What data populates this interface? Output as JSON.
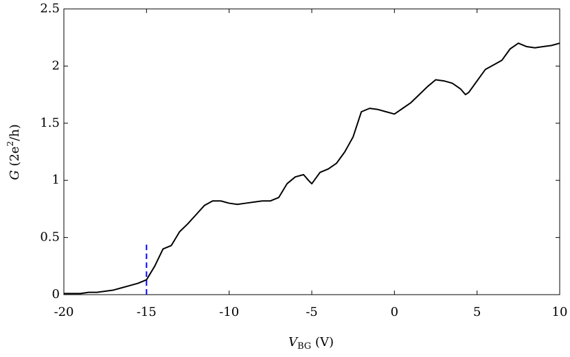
{
  "chart_data": {
    "type": "line",
    "xlabel": [
      "V",
      "BG",
      " (V)"
    ],
    "ylabel": [
      "G",
      " (2e",
      "2",
      "/h)"
    ],
    "x": [
      -20,
      -19.5,
      -19,
      -18.5,
      -18,
      -17.5,
      -17,
      -16.5,
      -16,
      -15.5,
      -15,
      -14.5,
      -14,
      -13.5,
      -13,
      -12.5,
      -12,
      -11.5,
      -11,
      -10.5,
      -10,
      -9.5,
      -9,
      -8.5,
      -8,
      -7.5,
      -7,
      -6.5,
      -6,
      -5.5,
      -5.2,
      -5,
      -4.5,
      -4,
      -3.5,
      -3,
      -2.5,
      -2,
      -1.5,
      -1,
      -0.5,
      0,
      0.5,
      1,
      1.5,
      2,
      2.5,
      3,
      3.5,
      4,
      4.3,
      4.5,
      5,
      5.5,
      6,
      6.5,
      7,
      7.5,
      8,
      8.5,
      9,
      9.5,
      10
    ],
    "series": [
      {
        "color": "#000000",
        "values": [
          0.01,
          0.01,
          0.01,
          0.02,
          0.02,
          0.03,
          0.04,
          0.06,
          0.08,
          0.1,
          0.13,
          0.25,
          0.4,
          0.43,
          0.55,
          0.62,
          0.7,
          0.78,
          0.82,
          0.82,
          0.8,
          0.79,
          0.8,
          0.81,
          0.82,
          0.82,
          0.85,
          0.97,
          1.03,
          1.05,
          1.0,
          0.97,
          1.07,
          1.1,
          1.15,
          1.25,
          1.38,
          1.6,
          1.63,
          1.62,
          1.6,
          1.58,
          1.63,
          1.68,
          1.75,
          1.82,
          1.88,
          1.87,
          1.85,
          1.8,
          1.75,
          1.77,
          1.87,
          1.97,
          2.01,
          2.05,
          2.15,
          2.2,
          2.17,
          2.16,
          2.17,
          2.18,
          2.2
        ]
      }
    ],
    "vline": {
      "x": -15,
      "y": [
        0,
        0.45
      ],
      "color": "#0000ff"
    },
    "xlim": [
      -20,
      10
    ],
    "xticks": [
      -20,
      -15,
      -10,
      -5,
      0,
      5,
      10
    ],
    "ylim": [
      0,
      2.5
    ],
    "yticks": [
      0,
      0.5,
      1,
      1.5,
      2,
      2.5
    ]
  }
}
